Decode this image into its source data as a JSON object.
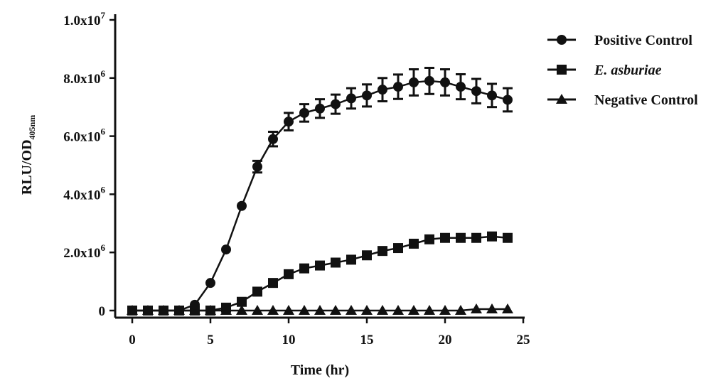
{
  "chart_data": {
    "type": "line",
    "xlabel": "Time (hr)",
    "ylabel": "RLU/OD",
    "ylabel_subscript": "405nm",
    "xlim": [
      0,
      25
    ],
    "ylim": [
      0,
      10000000
    ],
    "x_ticks": [
      {
        "value": 0,
        "label": "0"
      },
      {
        "value": 5,
        "label": "5"
      },
      {
        "value": 10,
        "label": "10"
      },
      {
        "value": 15,
        "label": "15"
      },
      {
        "value": 20,
        "label": "20"
      },
      {
        "value": 25,
        "label": "25"
      }
    ],
    "y_ticks": [
      {
        "value": 0,
        "base": "0",
        "exp": ""
      },
      {
        "value": 2000000,
        "base": "2.0x10",
        "exp": "6"
      },
      {
        "value": 4000000,
        "base": "4.0x10",
        "exp": "6"
      },
      {
        "value": 6000000,
        "base": "6.0x10",
        "exp": "6"
      },
      {
        "value": 8000000,
        "base": "8.0x10",
        "exp": "6"
      },
      {
        "value": 10000000,
        "base": "1.0x10",
        "exp": "7"
      }
    ],
    "grid": false,
    "legend_position": "top-right",
    "x": [
      0,
      1,
      2,
      3,
      4,
      5,
      6,
      7,
      8,
      9,
      10,
      11,
      12,
      13,
      14,
      15,
      16,
      17,
      18,
      19,
      20,
      21,
      22,
      23,
      24
    ],
    "series": [
      {
        "name": "Positive Control",
        "marker": "circle",
        "italic": false,
        "values": [
          0,
          0,
          0,
          0,
          200000,
          950000,
          2100000,
          3600000,
          4950000,
          5900000,
          6500000,
          6800000,
          6950000,
          7100000,
          7300000,
          7400000,
          7600000,
          7700000,
          7850000,
          7900000,
          7850000,
          7700000,
          7550000,
          7400000,
          7250000
        ],
        "errors": [
          0,
          0,
          0,
          0,
          0,
          0,
          0,
          0,
          200000,
          250000,
          300000,
          300000,
          320000,
          330000,
          350000,
          380000,
          400000,
          420000,
          450000,
          450000,
          450000,
          430000,
          420000,
          400000,
          400000
        ]
      },
      {
        "name": "E. asburiae",
        "marker": "square",
        "italic": true,
        "values": [
          0,
          0,
          0,
          0,
          0,
          0,
          100000,
          300000,
          650000,
          950000,
          1250000,
          1450000,
          1550000,
          1650000,
          1750000,
          1900000,
          2050000,
          2150000,
          2300000,
          2450000,
          2500000,
          2500000,
          2500000,
          2550000,
          2500000
        ],
        "errors": []
      },
      {
        "name": "Negative Control",
        "marker": "triangle",
        "italic": false,
        "values": [
          0,
          0,
          0,
          0,
          0,
          0,
          0,
          0,
          0,
          0,
          0,
          0,
          0,
          0,
          0,
          0,
          0,
          0,
          0,
          0,
          0,
          0,
          50000,
          50000,
          50000
        ],
        "errors": []
      }
    ]
  }
}
